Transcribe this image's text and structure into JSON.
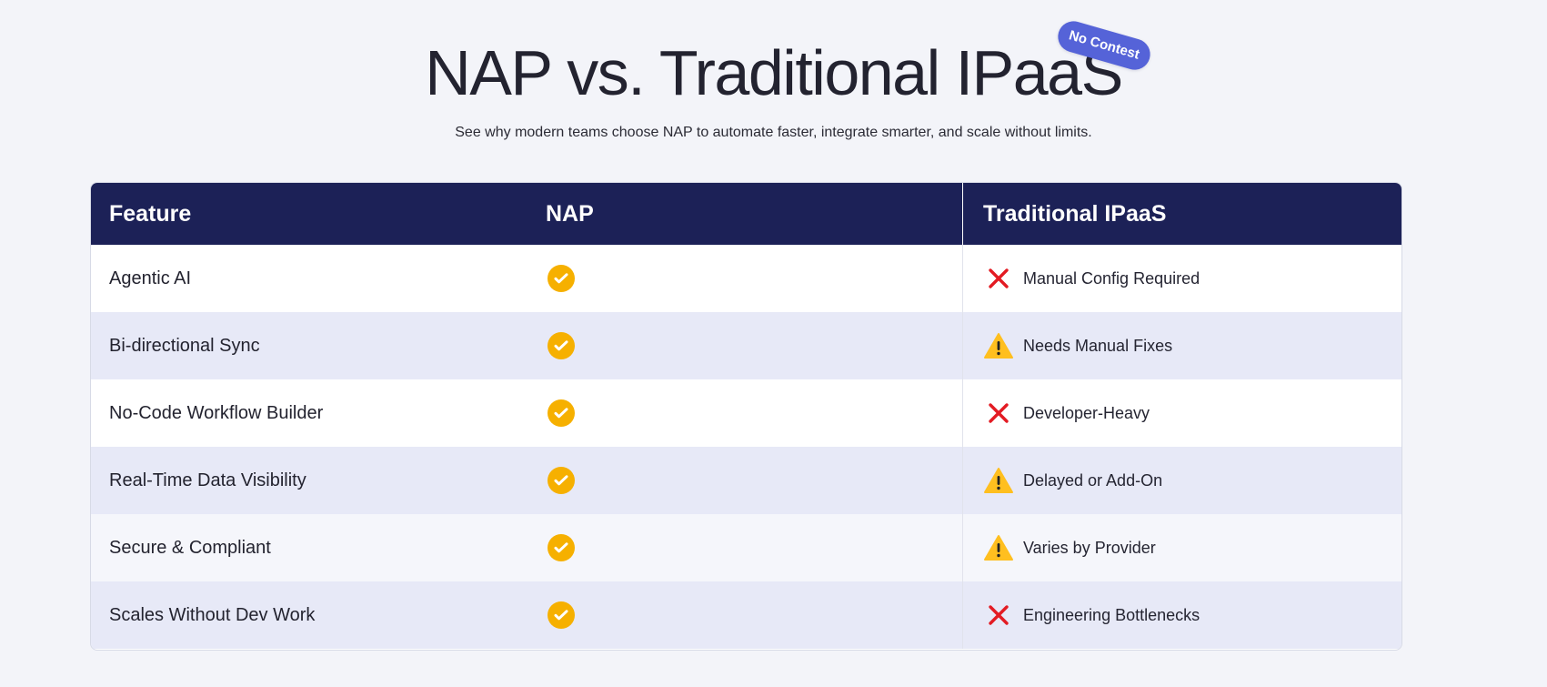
{
  "hero": {
    "title": "NAP vs. Traditional IPaaS",
    "badge": "No Contest",
    "subtitle": "See why modern teams choose NAP to automate faster, integrate smarter, and scale without limits."
  },
  "table": {
    "headers": [
      "Feature",
      "NAP",
      "Traditional IPaaS"
    ],
    "rows": [
      {
        "feature": "Agentic AI",
        "nap_icon": "check-icon",
        "traditional_icon": "x-icon",
        "traditional_text": "Manual Config Required"
      },
      {
        "feature": "Bi-directional Sync",
        "nap_icon": "check-icon",
        "traditional_icon": "warning-icon",
        "traditional_text": "Needs Manual Fixes"
      },
      {
        "feature": "No-Code Workflow Builder",
        "nap_icon": "check-icon",
        "traditional_icon": "x-icon",
        "traditional_text": "Developer-Heavy"
      },
      {
        "feature": "Real-Time Data Visibility",
        "nap_icon": "check-icon",
        "traditional_icon": "warning-icon",
        "traditional_text": "Delayed or Add-On"
      },
      {
        "feature": "Secure & Compliant",
        "nap_icon": "check-icon",
        "traditional_icon": "warning-icon",
        "traditional_text": "Varies by Provider"
      },
      {
        "feature": "Scales Without Dev Work",
        "nap_icon": "check-icon",
        "traditional_icon": "x-icon",
        "traditional_text": "Engineering Bottlenecks"
      }
    ]
  },
  "colors": {
    "background": "#f3f4f9",
    "header": "#1c2157",
    "accent": "#5563d8",
    "check": "#f6b000",
    "warning": "#ffbf1f",
    "error": "#e31b23"
  }
}
